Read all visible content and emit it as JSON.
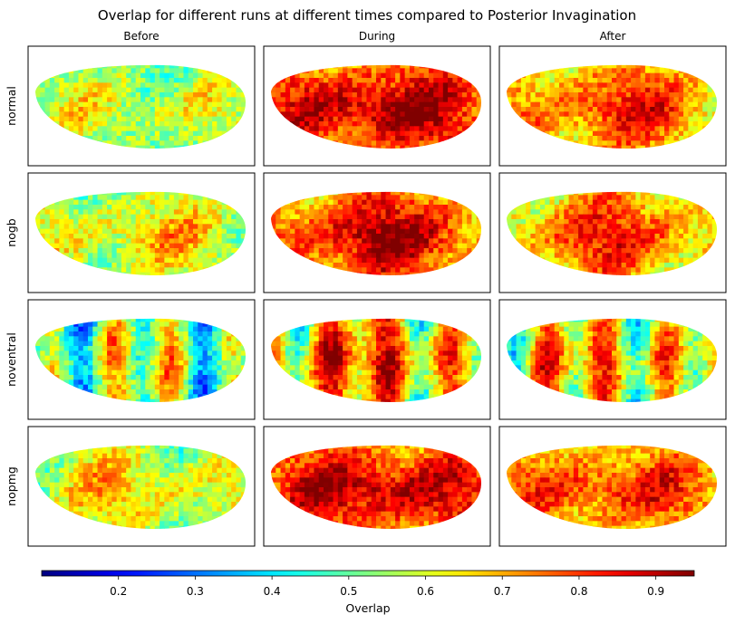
{
  "chart_data": {
    "type": "heatmap",
    "title": "Overlap for different runs at different times compared to Posterior Invagination",
    "columns": [
      "Before",
      "During",
      "After"
    ],
    "rows": [
      "normal",
      "nogb",
      "noventral",
      "nopmg"
    ],
    "colormap": "jet",
    "colorbar": {
      "label": "Overlap",
      "range": [
        0.1,
        0.95
      ],
      "ticks": [
        "0.2",
        "0.3",
        "0.4",
        "0.5",
        "0.6",
        "0.7",
        "0.8",
        "0.9"
      ],
      "tick_values": [
        0.2,
        0.3,
        0.4,
        0.5,
        0.6,
        0.7,
        0.8,
        0.9
      ],
      "orientation": "horizontal",
      "placement": "bottom"
    },
    "panel_mean_overlap": [
      [
        0.58,
        0.85,
        0.75
      ],
      [
        0.62,
        0.82,
        0.74
      ],
      [
        0.55,
        0.72,
        0.66
      ],
      [
        0.62,
        0.84,
        0.76
      ]
    ]
  }
}
